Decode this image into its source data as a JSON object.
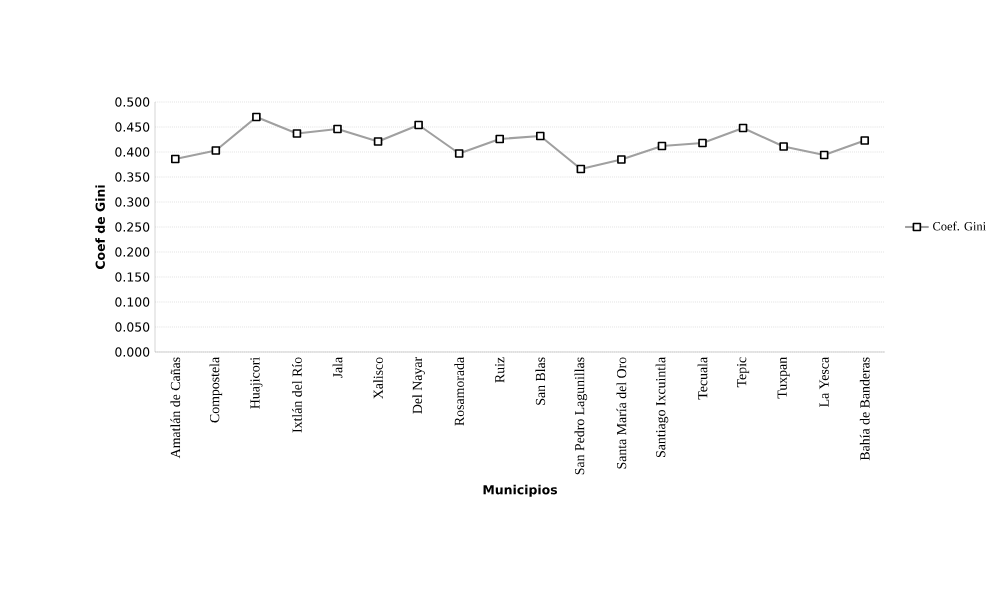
{
  "chart_data": {
    "type": "line",
    "xlabel": "Municipios",
    "ylabel": "Coef de Gini",
    "categories": [
      "Amatlán de Cañas",
      "Compostela",
      "Huajicori",
      "Ixtlán del Río",
      "Jala",
      "Xalisco",
      "Del Nayar",
      "Rosamorada",
      "Ruiz",
      "San Blas",
      "San Pedro Lagunillas",
      "Santa María del Oro",
      "Santiago Ixcuintla",
      "Tecuala",
      "Tepic",
      "Tuxpan",
      "La Yesca",
      "Bahía de Banderas"
    ],
    "series": [
      {
        "name": "Coef. Gini",
        "color": "#a0a0a0",
        "values": [
          0.386,
          0.403,
          0.47,
          0.437,
          0.446,
          0.421,
          0.454,
          0.397,
          0.426,
          0.432,
          0.366,
          0.385,
          0.412,
          0.418,
          0.448,
          0.411,
          0.394,
          0.423
        ]
      }
    ],
    "ylim": [
      0,
      0.5
    ],
    "yticks": [
      {
        "value": 0,
        "label": "0.000"
      },
      {
        "value": 0.05,
        "label": "0.050"
      },
      {
        "value": 0.1,
        "label": "0.100"
      },
      {
        "value": 0.15,
        "label": "0.150"
      },
      {
        "value": 0.2,
        "label": "0.200"
      },
      {
        "value": 0.25,
        "label": "0.250"
      },
      {
        "value": 0.3,
        "label": "0.300"
      },
      {
        "value": 0.35,
        "label": "0.350"
      },
      {
        "value": 0.4,
        "label": "0.400"
      },
      {
        "value": 0.45,
        "label": "0.450"
      },
      {
        "value": 0.5,
        "label": "0.500"
      }
    ],
    "grid": "y",
    "legend": "right",
    "marker": "square",
    "line_style": "solid"
  }
}
